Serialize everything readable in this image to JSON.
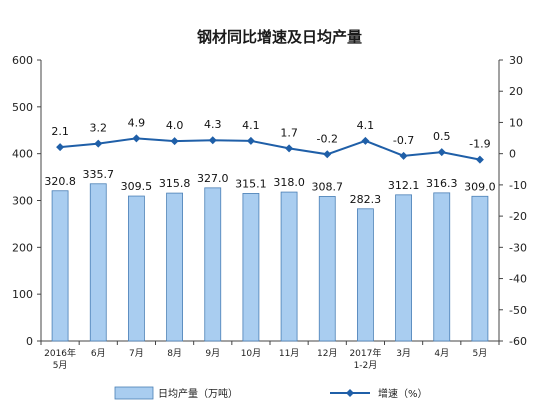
{
  "chart_data": {
    "type": "bar",
    "title": "钢材同比增速及日均产量",
    "categories": [
      [
        "2016年",
        "5月"
      ],
      [
        "6月"
      ],
      [
        "7月"
      ],
      [
        "8月"
      ],
      [
        "9月"
      ],
      [
        "10月"
      ],
      [
        "11月"
      ],
      [
        "12月"
      ],
      [
        "2017年",
        "1-2月"
      ],
      [
        "3月"
      ],
      [
        "4月"
      ],
      [
        "5月"
      ]
    ],
    "series": [
      {
        "name": "日均产量（万吨）",
        "type": "bar",
        "axis": "left",
        "values": [
          320.8,
          335.7,
          309.5,
          315.8,
          327.0,
          315.1,
          318.0,
          308.7,
          282.3,
          312.1,
          316.3,
          309.0
        ],
        "labels": [
          "320.8",
          "335.7",
          "309.5",
          "315.8",
          "327.0",
          "315.1",
          "318.0",
          "308.7",
          "282.3",
          "312.1",
          "316.3",
          "309.0"
        ],
        "color": "#a9cdf0",
        "stroke": "#4a7fb5"
      },
      {
        "name": "增速（%）",
        "type": "line",
        "axis": "right",
        "values": [
          2.1,
          3.2,
          4.9,
          4.0,
          4.3,
          4.1,
          1.7,
          -0.2,
          4.1,
          -0.7,
          0.5,
          -1.9
        ],
        "labels": [
          "2.1",
          "3.2",
          "4.9",
          "4.0",
          "4.3",
          "4.1",
          "1.7",
          "-0.2",
          "4.1",
          "-0.7",
          "0.5",
          "-1.9"
        ],
        "color": "#1f5fa8"
      }
    ],
    "y_left": {
      "min": 0,
      "max": 600,
      "step": 100,
      "ticks": [
        "0",
        "100",
        "200",
        "300",
        "400",
        "500",
        "600"
      ]
    },
    "y_right": {
      "min": -60,
      "max": 30,
      "step": 10,
      "ticks": [
        "-60",
        "-50",
        "-40",
        "-30",
        "-20",
        "-10",
        "0",
        "10",
        "20",
        "30"
      ]
    },
    "grid": false,
    "legend_position": "bottom"
  }
}
